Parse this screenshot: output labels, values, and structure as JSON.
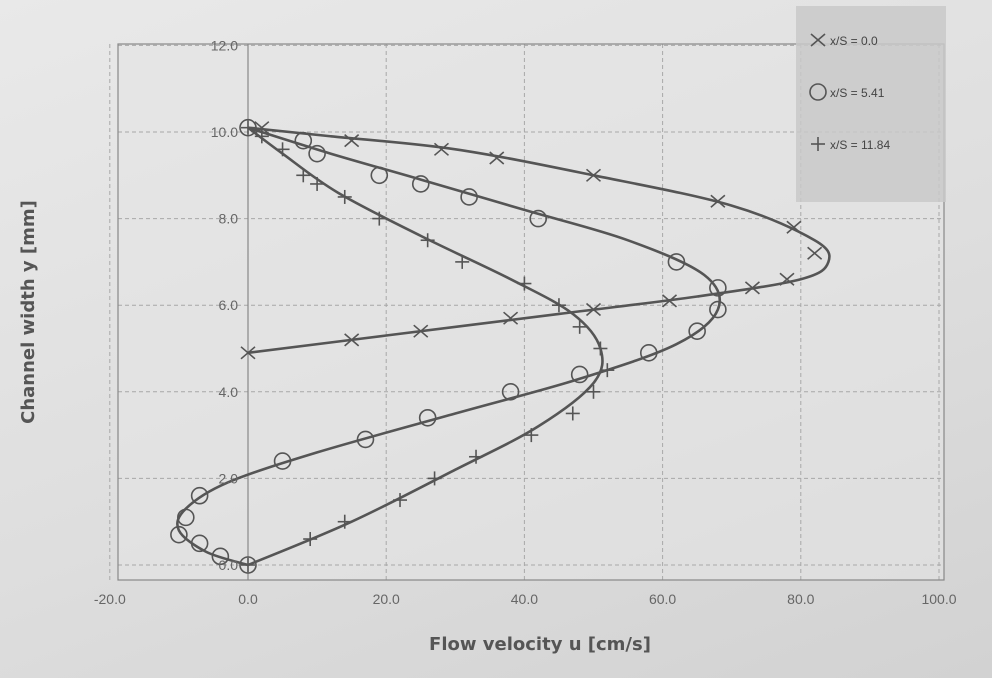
{
  "chart_data": {
    "type": "scatter",
    "title": "",
    "xlabel": "Flow velocity u [cm/s]",
    "ylabel": "Channel width  y [mm]",
    "xlim": [
      -20,
      100
    ],
    "ylim": [
      0,
      12
    ],
    "x_ticks": [
      "-20.0",
      "0.0",
      "20.0",
      "40.0",
      "60.0",
      "80.0",
      "100.0"
    ],
    "y_ticks": [
      "0.0",
      "2.0",
      "4.0",
      "6.0",
      "8.0",
      "10.0",
      "12.0"
    ],
    "grid": true,
    "legend_position": "top-right",
    "series": [
      {
        "name": "x/S = 0.0",
        "marker": "x",
        "markers": [
          {
            "x": 0,
            "y": 4.9
          },
          {
            "x": 15,
            "y": 5.2
          },
          {
            "x": 25,
            "y": 5.4
          },
          {
            "x": 38,
            "y": 5.7
          },
          {
            "x": 50,
            "y": 5.9
          },
          {
            "x": 61,
            "y": 6.1
          },
          {
            "x": 73,
            "y": 6.4
          },
          {
            "x": 78,
            "y": 6.6
          },
          {
            "x": 82,
            "y": 7.2
          },
          {
            "x": 79,
            "y": 7.8
          },
          {
            "x": 68,
            "y": 8.4
          },
          {
            "x": 50,
            "y": 9.0
          },
          {
            "x": 36,
            "y": 9.4
          },
          {
            "x": 28,
            "y": 9.6
          },
          {
            "x": 15,
            "y": 9.8
          },
          {
            "x": 2,
            "y": 10.1
          }
        ],
        "curve": [
          {
            "x": 0,
            "y": 4.9
          },
          {
            "x": 20,
            "y": 5.3
          },
          {
            "x": 45,
            "y": 5.8
          },
          {
            "x": 65,
            "y": 6.2
          },
          {
            "x": 80,
            "y": 6.6
          },
          {
            "x": 84,
            "y": 7.0
          },
          {
            "x": 82,
            "y": 7.5
          },
          {
            "x": 70,
            "y": 8.3
          },
          {
            "x": 50,
            "y": 9.0
          },
          {
            "x": 30,
            "y": 9.6
          },
          {
            "x": 12,
            "y": 9.9
          },
          {
            "x": 0,
            "y": 10.1
          }
        ]
      },
      {
        "name": "x/S = 5.41",
        "marker": "o",
        "markers": [
          {
            "x": 0,
            "y": 0
          },
          {
            "x": -4,
            "y": 0.2
          },
          {
            "x": -7,
            "y": 0.5
          },
          {
            "x": -10,
            "y": 0.7
          },
          {
            "x": -9,
            "y": 1.1
          },
          {
            "x": -7,
            "y": 1.6
          },
          {
            "x": 5,
            "y": 2.4
          },
          {
            "x": 17,
            "y": 2.9
          },
          {
            "x": 26,
            "y": 3.4
          },
          {
            "x": 38,
            "y": 4.0
          },
          {
            "x": 48,
            "y": 4.4
          },
          {
            "x": 58,
            "y": 4.9
          },
          {
            "x": 65,
            "y": 5.4
          },
          {
            "x": 68,
            "y": 5.9
          },
          {
            "x": 68,
            "y": 6.4
          },
          {
            "x": 62,
            "y": 7.0
          },
          {
            "x": 42,
            "y": 8.0
          },
          {
            "x": 32,
            "y": 8.5
          },
          {
            "x": 25,
            "y": 8.8
          },
          {
            "x": 19,
            "y": 9.0
          },
          {
            "x": 10,
            "y": 9.5
          },
          {
            "x": 8,
            "y": 9.8
          },
          {
            "x": 0,
            "y": 10.1
          }
        ],
        "curve": [
          {
            "x": 0,
            "y": 0
          },
          {
            "x": -6,
            "y": 0.3
          },
          {
            "x": -10,
            "y": 0.8
          },
          {
            "x": -9,
            "y": 1.3
          },
          {
            "x": -3,
            "y": 1.9
          },
          {
            "x": 10,
            "y": 2.6
          },
          {
            "x": 30,
            "y": 3.5
          },
          {
            "x": 48,
            "y": 4.3
          },
          {
            "x": 62,
            "y": 5.1
          },
          {
            "x": 68,
            "y": 5.9
          },
          {
            "x": 66,
            "y": 6.7
          },
          {
            "x": 55,
            "y": 7.5
          },
          {
            "x": 40,
            "y": 8.2
          },
          {
            "x": 25,
            "y": 8.9
          },
          {
            "x": 12,
            "y": 9.5
          },
          {
            "x": 0,
            "y": 10.1
          }
        ]
      },
      {
        "name": "x/S = 11.84",
        "marker": "+",
        "markers": [
          {
            "x": 0,
            "y": 0
          },
          {
            "x": 9,
            "y": 0.6
          },
          {
            "x": 14,
            "y": 1.0
          },
          {
            "x": 22,
            "y": 1.5
          },
          {
            "x": 27,
            "y": 2.0
          },
          {
            "x": 33,
            "y": 2.5
          },
          {
            "x": 41,
            "y": 3.0
          },
          {
            "x": 47,
            "y": 3.5
          },
          {
            "x": 50,
            "y": 4.0
          },
          {
            "x": 52,
            "y": 4.5
          },
          {
            "x": 51,
            "y": 5.0
          },
          {
            "x": 48,
            "y": 5.5
          },
          {
            "x": 45,
            "y": 6.0
          },
          {
            "x": 40,
            "y": 6.5
          },
          {
            "x": 31,
            "y": 7.0
          },
          {
            "x": 26,
            "y": 7.5
          },
          {
            "x": 19,
            "y": 8.0
          },
          {
            "x": 14,
            "y": 8.5
          },
          {
            "x": 10,
            "y": 8.8
          },
          {
            "x": 8,
            "y": 9.0
          },
          {
            "x": 5,
            "y": 9.6
          },
          {
            "x": 2,
            "y": 9.9
          },
          {
            "x": 0,
            "y": 10.1
          }
        ],
        "curve": [
          {
            "x": 0,
            "y": 0
          },
          {
            "x": 15,
            "y": 1.0
          },
          {
            "x": 30,
            "y": 2.2
          },
          {
            "x": 42,
            "y": 3.2
          },
          {
            "x": 50,
            "y": 4.2
          },
          {
            "x": 51,
            "y": 5.0
          },
          {
            "x": 47,
            "y": 5.8
          },
          {
            "x": 38,
            "y": 6.6
          },
          {
            "x": 25,
            "y": 7.6
          },
          {
            "x": 13,
            "y": 8.6
          },
          {
            "x": 5,
            "y": 9.5
          },
          {
            "x": 0,
            "y": 10.1
          }
        ]
      }
    ]
  }
}
